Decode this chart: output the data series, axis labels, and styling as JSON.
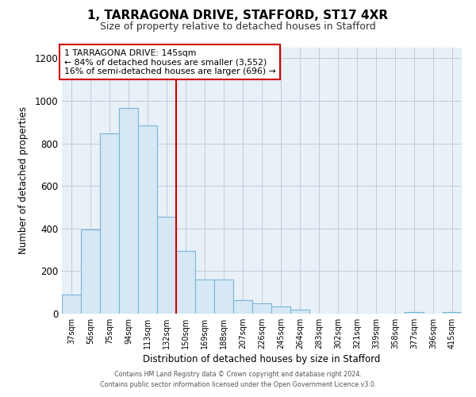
{
  "title": "1, TARRAGONA DRIVE, STAFFORD, ST17 4XR",
  "subtitle": "Size of property relative to detached houses in Stafford",
  "xlabel": "Distribution of detached houses by size in Stafford",
  "ylabel": "Number of detached properties",
  "bar_color": "#d6e8f5",
  "bar_edge_color": "#7ab4d8",
  "categories": [
    "37sqm",
    "56sqm",
    "75sqm",
    "94sqm",
    "113sqm",
    "132sqm",
    "150sqm",
    "169sqm",
    "188sqm",
    "207sqm",
    "226sqm",
    "245sqm",
    "264sqm",
    "283sqm",
    "302sqm",
    "321sqm",
    "339sqm",
    "358sqm",
    "377sqm",
    "396sqm",
    "415sqm"
  ],
  "values": [
    88,
    395,
    848,
    965,
    883,
    457,
    295,
    160,
    160,
    63,
    50,
    33,
    20,
    0,
    0,
    0,
    0,
    0,
    8,
    0,
    8
  ],
  "ylim": [
    0,
    1250
  ],
  "yticks": [
    0,
    200,
    400,
    600,
    800,
    1000,
    1200
  ],
  "vline_pos": 6.0,
  "vline_color": "#cc0000",
  "annotation_line1": "1 TARRAGONA DRIVE: 145sqm",
  "annotation_line2": "← 84% of detached houses are smaller (3,552)",
  "annotation_line3": "16% of semi-detached houses are larger (696) →",
  "annotation_box_edge": "#cc0000",
  "footer1": "Contains HM Land Registry data © Crown copyright and database right 2024.",
  "footer2": "Contains public sector information licensed under the Open Government Licence v3.0.",
  "plot_bg_color": "#e8f0f8",
  "fig_bg_color": "#ffffff"
}
